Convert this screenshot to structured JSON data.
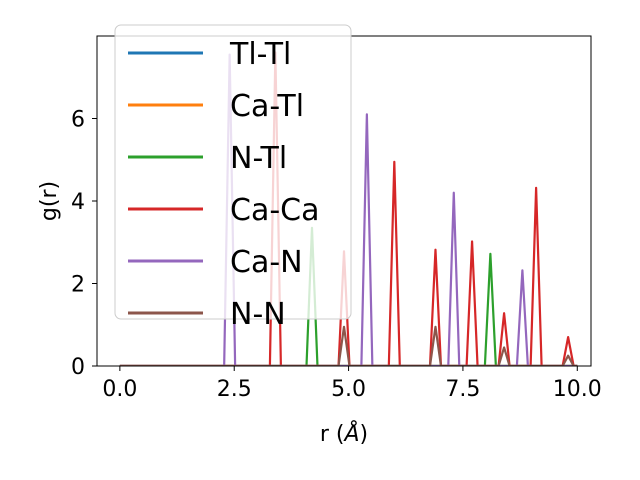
{
  "chart_data": {
    "type": "line",
    "title": "",
    "xlabel": "r (",
    "xlabel_unit": "Å",
    "xlabel_close": ")",
    "ylabel": "g(r)",
    "xlim": [
      -0.5,
      10.3
    ],
    "ylim": [
      0,
      8.0
    ],
    "xticks": [
      0.0,
      2.5,
      5.0,
      7.5,
      10.0
    ],
    "xtick_labels": [
      "0.0",
      "2.5",
      "5.0",
      "7.5",
      "10.0"
    ],
    "yticks": [
      0,
      2,
      4,
      6
    ],
    "ytick_labels": [
      "0",
      "2",
      "4",
      "6"
    ],
    "grid": false,
    "legend_position": "top-left",
    "series": [
      {
        "name": "Tl-Tl",
        "color": "#1f77b4",
        "peaks": []
      },
      {
        "name": "Ca-Tl",
        "color": "#ff7f0e",
        "peaks": []
      },
      {
        "name": "N-Tl",
        "color": "#2ca02c",
        "peaks": [
          [
            4.2,
            3.35
          ],
          [
            8.1,
            2.72
          ]
        ]
      },
      {
        "name": "Ca-Ca",
        "color": "#d62728",
        "peaks": [
          [
            3.4,
            7.6
          ],
          [
            4.9,
            2.78
          ],
          [
            6.0,
            4.95
          ],
          [
            6.9,
            2.82
          ],
          [
            7.7,
            3.02
          ],
          [
            8.4,
            1.28
          ],
          [
            9.1,
            4.32
          ],
          [
            9.8,
            0.7
          ]
        ]
      },
      {
        "name": "Ca-N",
        "color": "#9467bd",
        "peaks": [
          [
            2.4,
            7.55
          ],
          [
            5.4,
            6.1
          ],
          [
            7.3,
            4.2
          ],
          [
            8.8,
            2.32
          ]
        ]
      },
      {
        "name": "N-N",
        "color": "#8c564b",
        "peaks": [
          [
            4.9,
            0.95
          ],
          [
            6.9,
            0.95
          ],
          [
            8.4,
            0.45
          ],
          [
            9.8,
            0.25
          ]
        ]
      }
    ]
  }
}
